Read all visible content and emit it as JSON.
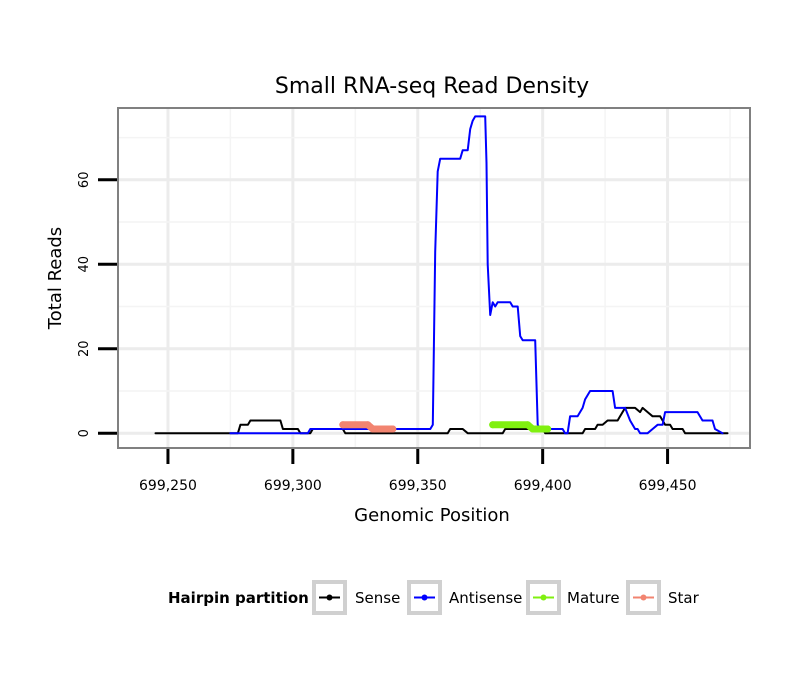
{
  "chart_data": {
    "type": "line",
    "title": "Small RNA-seq Read Density",
    "xlabel": "Genomic Position",
    "ylabel": "Total Reads",
    "xlim": [
      699230,
      699483
    ],
    "ylim": [
      -3.5,
      77
    ],
    "x_ticks": [
      699250,
      699300,
      699350,
      699400,
      699450
    ],
    "x_tick_labels": [
      "699,250",
      "699,300",
      "699,350",
      "699,400",
      "699,450"
    ],
    "y_ticks": [
      0,
      20,
      40,
      60
    ],
    "y_tick_labels": [
      "0",
      "20",
      "40",
      "60"
    ],
    "grid": true,
    "legend": {
      "title": "Hairpin partition",
      "position": "bottom",
      "entries": [
        "Sense",
        "Antisense",
        "Mature",
        "Star"
      ]
    },
    "series": [
      {
        "name": "Sense",
        "color": "#000000",
        "points": [
          [
            699245,
            0
          ],
          [
            699278,
            0
          ],
          [
            699279,
            2
          ],
          [
            699282,
            2
          ],
          [
            699283,
            3
          ],
          [
            699295,
            3
          ],
          [
            699296,
            1
          ],
          [
            699302,
            1
          ],
          [
            699303,
            0
          ],
          [
            699307,
            0
          ],
          [
            699308,
            1
          ],
          [
            699312,
            1
          ],
          [
            699313,
            1
          ],
          [
            699320,
            1
          ],
          [
            699321,
            0
          ],
          [
            699332,
            0
          ],
          [
            699333,
            0
          ],
          [
            699362,
            0
          ],
          [
            699363,
            1
          ],
          [
            699368,
            1
          ],
          [
            699370,
            0
          ],
          [
            699384,
            0
          ],
          [
            699385,
            1
          ],
          [
            699390,
            1
          ],
          [
            699400,
            1
          ],
          [
            699401,
            0
          ],
          [
            699410,
            0
          ],
          [
            699411,
            0
          ],
          [
            699416,
            0
          ],
          [
            699417,
            1
          ],
          [
            699421,
            1
          ],
          [
            699422,
            2
          ],
          [
            699424,
            2
          ],
          [
            699426,
            3
          ],
          [
            699430,
            3
          ],
          [
            699431,
            4
          ],
          [
            699433,
            6
          ],
          [
            699437,
            6
          ],
          [
            699439,
            5
          ],
          [
            699440,
            6
          ],
          [
            699442,
            5
          ],
          [
            699444,
            4
          ],
          [
            699447,
            4
          ],
          [
            699449,
            2
          ],
          [
            699451,
            2
          ],
          [
            699452,
            1
          ],
          [
            699456,
            1
          ],
          [
            699457,
            0
          ],
          [
            699474,
            0
          ]
        ]
      },
      {
        "name": "Antisense",
        "color": "#0000ff",
        "points": [
          [
            699275,
            0
          ],
          [
            699306,
            0
          ],
          [
            699307,
            1
          ],
          [
            699355,
            1
          ],
          [
            699356,
            2
          ],
          [
            699357,
            43
          ],
          [
            699358,
            62
          ],
          [
            699359,
            65
          ],
          [
            699367,
            65
          ],
          [
            699368,
            67
          ],
          [
            699370,
            67
          ],
          [
            699371,
            72
          ],
          [
            699372,
            74
          ],
          [
            699373,
            75
          ],
          [
            699377,
            75
          ],
          [
            699377.5,
            64
          ],
          [
            699378,
            40
          ],
          [
            699379,
            28
          ],
          [
            699380,
            31
          ],
          [
            699381,
            30
          ],
          [
            699382,
            31
          ],
          [
            699387,
            31
          ],
          [
            699388,
            30
          ],
          [
            699390,
            30
          ],
          [
            699391,
            23
          ],
          [
            699392,
            22
          ],
          [
            699397,
            22
          ],
          [
            699398,
            2
          ],
          [
            699399,
            1
          ],
          [
            699408,
            1
          ],
          [
            699409,
            0
          ],
          [
            699410,
            0
          ],
          [
            699411,
            4
          ],
          [
            699414,
            4
          ],
          [
            699416,
            6
          ],
          [
            699417,
            8
          ],
          [
            699419,
            10
          ],
          [
            699428,
            10
          ],
          [
            699429,
            6
          ],
          [
            699433,
            6
          ],
          [
            699435,
            3
          ],
          [
            699437,
            1
          ],
          [
            699438,
            1
          ],
          [
            699439,
            0
          ],
          [
            699442,
            0
          ],
          [
            699444,
            1
          ],
          [
            699446,
            2
          ],
          [
            699448,
            2
          ],
          [
            699449,
            5
          ],
          [
            699462,
            5
          ],
          [
            699464,
            3
          ],
          [
            699468,
            3
          ],
          [
            699469,
            1
          ],
          [
            699472,
            0
          ]
        ]
      },
      {
        "name": "Mature",
        "color": "#80f010",
        "points": [
          [
            699380,
            2
          ],
          [
            699394,
            2
          ],
          [
            699396,
            1
          ],
          [
            699402,
            1
          ]
        ]
      },
      {
        "name": "Star",
        "color": "#f28470",
        "points": [
          [
            699320,
            2
          ],
          [
            699330,
            2
          ],
          [
            699332,
            1
          ],
          [
            699340,
            1
          ]
        ]
      }
    ]
  }
}
